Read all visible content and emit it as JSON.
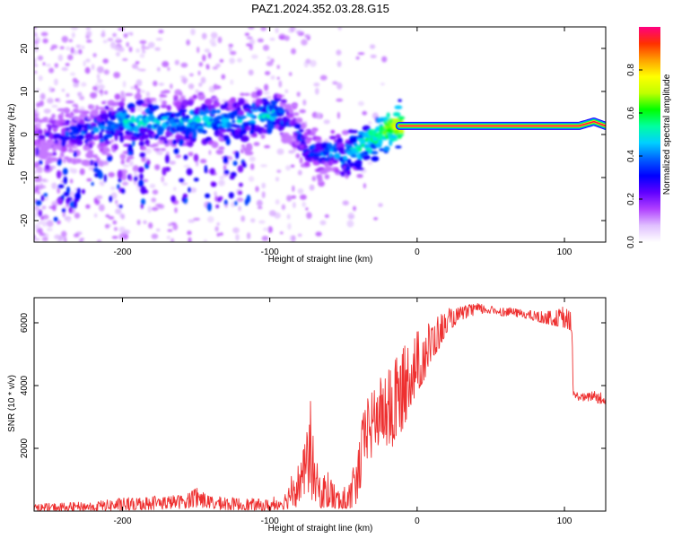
{
  "figure_title": "PAZ1.2024.352.03.28.G15",
  "chart_data": [
    {
      "type": "heatmap",
      "xlabel": "Height of straight line (km)",
      "ylabel": "Frequency (Hz)",
      "xlim": [
        -260,
        128
      ],
      "ylim": [
        -25,
        25
      ],
      "xticks": [
        -200,
        -100,
        0,
        100
      ],
      "yticks": [
        -20,
        -10,
        0,
        10,
        20
      ],
      "colorbar": {
        "label": "Normalized spectral amplitude",
        "range": [
          0,
          1
        ],
        "ticks": [
          0.0,
          0.2,
          0.4,
          0.6,
          0.8
        ],
        "tick_labels": [
          "0.0",
          "0.2",
          "0.4",
          "0.6",
          "0.8"
        ],
        "colormap": [
          "#ffffff",
          "#e0c0ff",
          "#b040ff",
          "#6000ff",
          "#0000ff",
          "#0060ff",
          "#00d0ff",
          "#00ffa0",
          "#00ff00",
          "#c0ff00",
          "#ffff00",
          "#ffa000",
          "#ff3000",
          "#ff0080"
        ]
      },
      "ridge": {
        "x": [
          -260,
          -240,
          -220,
          -200,
          -180,
          -160,
          -140,
          -120,
          -110,
          -100,
          -95,
          -90,
          -85,
          -80,
          -75,
          -70,
          -65,
          -60,
          -55,
          -50,
          -45,
          -40,
          -35,
          -30,
          -25,
          -20,
          -15,
          -10,
          -5,
          0,
          10,
          20,
          40,
          60,
          80,
          100,
          110,
          120,
          128
        ],
        "y": [
          0,
          0,
          1,
          3,
          3,
          3,
          3,
          3,
          4,
          4,
          5,
          4,
          2,
          0,
          -3,
          -4,
          -5,
          -4,
          -4,
          -6,
          -4,
          -3,
          -2,
          -1,
          0,
          1,
          2,
          2,
          2,
          2,
          2,
          2,
          2,
          2,
          2,
          2,
          2,
          3,
          2
        ],
        "amplitude": [
          0.2,
          0.3,
          0.35,
          0.45,
          0.45,
          0.45,
          0.45,
          0.4,
          0.45,
          0.5,
          0.4,
          0.35,
          0.3,
          0.3,
          0.3,
          0.35,
          0.35,
          0.4,
          0.4,
          0.4,
          0.45,
          0.5,
          0.55,
          0.55,
          0.6,
          0.65,
          0.7,
          0.75,
          0.8,
          0.85,
          0.9,
          0.95,
          1.0,
          1.0,
          1.0,
          1.0,
          0.9,
          0.75,
          0.6
        ]
      }
    },
    {
      "type": "line",
      "xlabel": "Height of straight line (km)",
      "ylabel": "SNR (10 * v/v)",
      "xlim": [
        -260,
        128
      ],
      "ylim": [
        0,
        6800
      ],
      "xticks": [
        -200,
        -100,
        0,
        100
      ],
      "yticks": [
        2000,
        4000,
        6000
      ],
      "color": "#ee3030",
      "series": [
        {
          "x": [
            -260,
            -240,
            -220,
            -200,
            -180,
            -160,
            -150,
            -140,
            -120,
            -100,
            -90,
            -80,
            -75,
            -72,
            -70,
            -65,
            -60,
            -55,
            -50,
            -45,
            -40,
            -35,
            -30,
            -25,
            -20,
            -15,
            -10,
            -5,
            0,
            5,
            10,
            15,
            20,
            30,
            40,
            50,
            60,
            70,
            80,
            90,
            95,
            100,
            103,
            105,
            106,
            110,
            115,
            120,
            125,
            128
          ],
          "y": [
            100,
            120,
            150,
            200,
            250,
            300,
            450,
            250,
            200,
            150,
            300,
            900,
            1500,
            2200,
            1000,
            500,
            700,
            300,
            300,
            400,
            1200,
            2500,
            2800,
            3200,
            3000,
            3500,
            3800,
            4400,
            4700,
            5000,
            5300,
            5600,
            5900,
            6300,
            6450,
            6400,
            6350,
            6300,
            6200,
            6100,
            6050,
            6000,
            5950,
            5900,
            3700,
            3650,
            3600,
            3700,
            3550,
            3500
          ],
          "min": [
            0,
            0,
            0,
            30,
            50,
            50,
            80,
            50,
            40,
            30,
            60,
            100,
            300,
            400,
            200,
            100,
            150,
            80,
            80,
            100,
            300,
            1200,
            1400,
            2000,
            1800,
            2200,
            2600,
            3200,
            3800,
            4200,
            4800,
            5200,
            5700,
            6100,
            6250,
            6250,
            6200,
            6150,
            6050,
            5950,
            5900,
            5850,
            5800,
            5750,
            3550,
            3500,
            3450,
            3500,
            3300,
            3400
          ],
          "max": [
            250,
            280,
            320,
            450,
            500,
            550,
            750,
            500,
            450,
            400,
            600,
            1700,
            2500,
            3650,
            2000,
            1100,
            1400,
            800,
            800,
            1000,
            2400,
            3600,
            3800,
            4300,
            4500,
            5000,
            5300,
            5700,
            5900,
            6100,
            6200,
            6400,
            6450,
            6550,
            6650,
            6550,
            6500,
            6450,
            6400,
            6400,
            6450,
            6700,
            6450,
            6400,
            3850,
            3800,
            3750,
            3900,
            3800,
            3650
          ]
        }
      ]
    }
  ]
}
